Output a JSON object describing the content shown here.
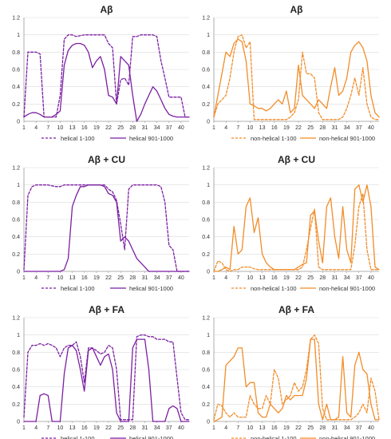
{
  "colors": {
    "helical": "#7B1FA2",
    "nonhelical": "#F28C28"
  },
  "chart_data": [
    {
      "type": "line",
      "title": "Aβ",
      "color_key": "helical",
      "ylim": [
        0,
        1.2
      ],
      "yticks": [
        "0",
        "0.2",
        "0.4",
        "0.6",
        "0.8",
        "1",
        "1.2"
      ],
      "xlim": [
        1,
        42
      ],
      "xticks": [
        1,
        4,
        7,
        10,
        13,
        16,
        19,
        22,
        25,
        28,
        31,
        34,
        37,
        40
      ],
      "grid": true,
      "legend": "bottom",
      "series": [
        {
          "name": "helical 1-100",
          "style": "dashed",
          "values": [
            0.05,
            0.8,
            0.8,
            0.8,
            0.78,
            0.05,
            0.05,
            0.05,
            0.05,
            0.3,
            0.95,
            1,
            1,
            0.98,
            0.99,
            1,
            1,
            1,
            1,
            1,
            1,
            0.9,
            0.85,
            0.2,
            0.48,
            0.5,
            0.42,
            0.98,
            0.98,
            1,
            1,
            1,
            1,
            0.98,
            0.7,
            0.5,
            0.28,
            0.28,
            0.28,
            0.28,
            0.05,
            0.05
          ]
        },
        {
          "name": "helical 901-1000",
          "style": "solid",
          "values": [
            0.05,
            0.08,
            0.1,
            0.1,
            0.08,
            0.05,
            0.05,
            0.05,
            0.08,
            0.12,
            0.65,
            0.82,
            0.88,
            0.9,
            0.9,
            0.88,
            0.8,
            0.62,
            0.7,
            0.75,
            0.6,
            0.3,
            0.28,
            0.2,
            0.75,
            0.7,
            0.65,
            0.3,
            0,
            0.08,
            0.2,
            0.3,
            0.4,
            0.35,
            0.25,
            0.15,
            0.08,
            0.06,
            0.05,
            0.05,
            0.05,
            0.05
          ]
        }
      ]
    },
    {
      "type": "line",
      "title": "Aβ",
      "color_key": "nonhelical",
      "ylim": [
        0,
        1.2
      ],
      "yticks": [
        "0",
        "0.2",
        "0.4",
        "0.6",
        "0.8",
        "1",
        "1.2"
      ],
      "xlim": [
        1,
        42
      ],
      "xticks": [
        1,
        4,
        7,
        10,
        13,
        16,
        19,
        22,
        25,
        28,
        31,
        34,
        37,
        40
      ],
      "grid": true,
      "legend": "bottom",
      "series": [
        {
          "name": "non-helical 1-100",
          "style": "dashed",
          "values": [
            0.05,
            0.2,
            0.25,
            0.3,
            0.5,
            0.8,
            0.98,
            1,
            0.85,
            0.92,
            0.02,
            0.02,
            0.02,
            0.02,
            0.02,
            0.02,
            0.02,
            0.02,
            0.02,
            0.05,
            0.1,
            0.25,
            0.8,
            0.55,
            0.55,
            0.5,
            0.1,
            0.02,
            0.02,
            0.02,
            0.02,
            0.02,
            0.05,
            0.15,
            0.3,
            0.5,
            0.3,
            0.62,
            0.2,
            0.05,
            0.02,
            0.02
          ]
        },
        {
          "name": "non-helical 901-1000",
          "style": "solid",
          "values": [
            0.05,
            0.3,
            0.55,
            0.8,
            0.75,
            0.9,
            0.95,
            0.92,
            0.7,
            0.2,
            0.18,
            0.15,
            0.15,
            0.12,
            0.15,
            0.2,
            0.25,
            0.2,
            0.35,
            0.1,
            0.15,
            0.65,
            0.3,
            0.25,
            0.2,
            0.15,
            0.25,
            0.2,
            0.15,
            0.4,
            0.62,
            0.3,
            0.35,
            0.5,
            0.8,
            0.88,
            0.92,
            0.85,
            0.7,
            0.3,
            0.1,
            0.05
          ]
        }
      ]
    },
    {
      "type": "line",
      "title": "Aβ + CU",
      "color_key": "helical",
      "ylim": [
        0,
        1.2
      ],
      "yticks": [
        "0",
        "0.2",
        "0.4",
        "0.6",
        "0.8",
        "1",
        "1.2"
      ],
      "xlim": [
        1,
        42
      ],
      "xticks": [
        1,
        4,
        7,
        10,
        13,
        16,
        19,
        22,
        25,
        28,
        31,
        34,
        37,
        40
      ],
      "grid": true,
      "legend": "bottom",
      "series": [
        {
          "name": "helical 1-100",
          "style": "dashed",
          "values": [
            0.02,
            0.88,
            0.98,
            1,
            1,
            1,
            1,
            0.99,
            0.98,
            0.98,
            1,
            1,
            1,
            1,
            1,
            1,
            1,
            1,
            1,
            1,
            1,
            0.95,
            0.92,
            0.82,
            0.55,
            0.25,
            0.95,
            1,
            1,
            1,
            1,
            1,
            1,
            1,
            0.98,
            0.8,
            0.3,
            0.25,
            0,
            0,
            0,
            0
          ]
        },
        {
          "name": "helical 901-1000",
          "style": "solid",
          "values": [
            0,
            0,
            0,
            0,
            0,
            0,
            0,
            0,
            0,
            0,
            0.02,
            0.15,
            0.75,
            0.88,
            0.98,
            0.98,
            1,
            1,
            1,
            1,
            0.98,
            0.9,
            0.88,
            0.8,
            0.35,
            0.4,
            0.35,
            0.25,
            0.15,
            0.1,
            0.05,
            0,
            0,
            0,
            0,
            0,
            0,
            0,
            0,
            0,
            0,
            0
          ]
        }
      ]
    },
    {
      "type": "line",
      "title": "Aβ + CU",
      "color_key": "nonhelical",
      "ylim": [
        0,
        1.2
      ],
      "yticks": [
        "0",
        "0.2",
        "0.4",
        "0.6",
        "0.8",
        "1",
        "1.2"
      ],
      "xlim": [
        1,
        42
      ],
      "xticks": [
        1,
        4,
        7,
        10,
        13,
        16,
        19,
        22,
        25,
        28,
        31,
        34,
        37,
        40
      ],
      "grid": true,
      "legend": "bottom",
      "series": [
        {
          "name": "non-helical 1-100",
          "style": "dashed",
          "values": [
            0,
            0.12,
            0.1,
            0.02,
            0,
            0.02,
            0.02,
            0.05,
            0.05,
            0.05,
            0.03,
            0.02,
            0.02,
            0.02,
            0.02,
            0.02,
            0.02,
            0.02,
            0.02,
            0.02,
            0.02,
            0.02,
            0.05,
            0.25,
            0.5,
            0.72,
            0.05,
            0.02,
            0.02,
            0.02,
            0.02,
            0.02,
            0.02,
            0.02,
            0.02,
            0.3,
            0.75,
            0.9,
            0.25,
            0.02,
            0.02,
            0.02
          ]
        },
        {
          "name": "non-helical 901-1000",
          "style": "solid",
          "values": [
            0,
            0,
            0.02,
            0.05,
            0.02,
            0.52,
            0.2,
            0.25,
            0.75,
            0.85,
            0.45,
            0.62,
            0.2,
            0.1,
            0.05,
            0.02,
            0.02,
            0.02,
            0.02,
            0.02,
            0.02,
            0.05,
            0.08,
            0.1,
            0.65,
            0.7,
            0.35,
            0.1,
            0.75,
            0.85,
            0.4,
            0.15,
            0.75,
            0.25,
            0.1,
            0.95,
            1,
            0.8,
            1,
            0.75,
            0.05,
            0.02
          ]
        }
      ]
    },
    {
      "type": "line",
      "title": "Aβ + FA",
      "color_key": "helical",
      "ylim": [
        0,
        1.2
      ],
      "yticks": [
        "0",
        "0.2",
        "0.4",
        "0.6",
        "0.8",
        "1",
        "1.2"
      ],
      "xlim": [
        1,
        42
      ],
      "xticks": [
        1,
        4,
        7,
        10,
        13,
        16,
        19,
        22,
        25,
        28,
        31,
        34,
        37,
        40
      ],
      "grid": true,
      "legend": "bottom",
      "series": [
        {
          "name": "helical 1-100",
          "style": "dashed",
          "values": [
            0.05,
            0.8,
            0.88,
            0.88,
            0.9,
            0.88,
            0.9,
            0.88,
            0.85,
            0.75,
            0.85,
            0.88,
            0.88,
            0.92,
            0.75,
            0.45,
            0.85,
            0.85,
            0.82,
            0.78,
            0.8,
            0.88,
            0.85,
            0.6,
            0.02,
            0.02,
            0.02,
            0.02,
            0.98,
            1,
            1,
            0.98,
            0.98,
            0.95,
            0.95,
            0.95,
            0.92,
            0.92,
            0.5,
            0.1,
            0.02,
            0.02
          ]
        },
        {
          "name": "helical 901-1000",
          "style": "solid",
          "values": [
            0,
            0,
            0,
            0,
            0.3,
            0.32,
            0.3,
            0,
            0,
            0,
            0.55,
            0.85,
            0.88,
            0.82,
            0.6,
            0.35,
            0.82,
            0.85,
            0.75,
            0.65,
            0.75,
            0.78,
            0.6,
            0.1,
            0,
            0,
            0,
            0.85,
            0.95,
            0.95,
            0.95,
            0.6,
            0,
            0,
            0,
            0,
            0.15,
            0.18,
            0.15,
            0,
            0,
            0
          ]
        }
      ]
    },
    {
      "type": "line",
      "title": "Aβ + FA",
      "color_key": "nonhelical",
      "ylim": [
        0,
        1.2
      ],
      "yticks": [
        "0",
        "0.2",
        "0.4",
        "0.6",
        "0.8",
        "1",
        "1.2"
      ],
      "xlim": [
        1,
        42
      ],
      "xticks": [
        1,
        4,
        7,
        10,
        13,
        16,
        19,
        22,
        25,
        28,
        31,
        34,
        37,
        40
      ],
      "grid": true,
      "legend": "bottom",
      "series": [
        {
          "name": "non-helical 1-100",
          "style": "dashed",
          "values": [
            0.02,
            0.2,
            0.18,
            0.1,
            0.05,
            0.1,
            0.05,
            0.05,
            0.05,
            0.3,
            0.2,
            0.15,
            0.15,
            0.3,
            0.2,
            0.6,
            0.5,
            0.2,
            0.25,
            0.3,
            0.45,
            0.35,
            0.4,
            0.6,
            0.95,
            1,
            0.9,
            0.15,
            0.02,
            0.02,
            0.02,
            0.02,
            0.02,
            0.02,
            0.02,
            0.05,
            0.1,
            0.2,
            0.1,
            0.5,
            0.35,
            0.02
          ]
        },
        {
          "name": "non-helical 901-1000",
          "style": "solid",
          "values": [
            0,
            0.02,
            0.05,
            0.65,
            0.7,
            0.75,
            0.85,
            0.85,
            0.4,
            0.45,
            0.45,
            0.1,
            0.05,
            0.05,
            0.2,
            0.15,
            0.1,
            0.15,
            0.3,
            0.25,
            0.3,
            0.3,
            0.3,
            0.5,
            0.95,
            0.95,
            0.2,
            0.02,
            0.2,
            0.02,
            0.02,
            0.05,
            0.75,
            0.1,
            0.05,
            0.65,
            0.8,
            0.6,
            0.55,
            0.2,
            0.02,
            0.02
          ]
        }
      ]
    }
  ]
}
